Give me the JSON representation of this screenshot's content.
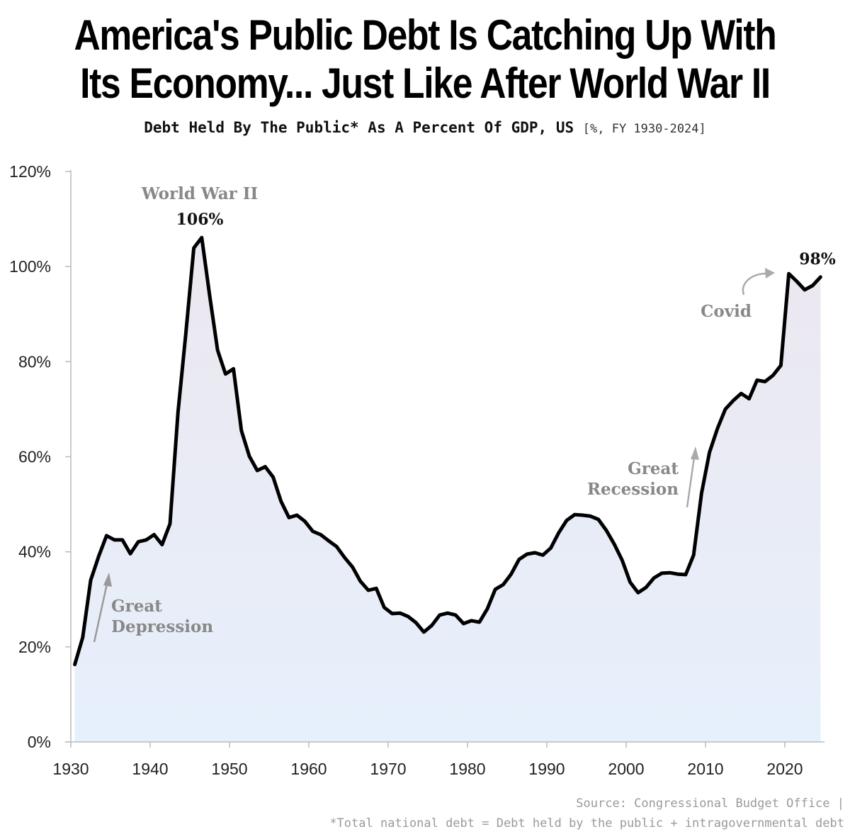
{
  "title": {
    "line1": "America's Public Debt Is Catching Up With",
    "line2": "Its Economy... Just Like After World War II"
  },
  "subtitle": {
    "main": "Debt Held By The Public* As A Percent Of GDP, US",
    "unit": "[%, FY 1930-2024]"
  },
  "chart_data": {
    "type": "area",
    "title": "Debt Held By The Public* As A Percent Of GDP, US",
    "xlabel": "",
    "ylabel": "",
    "xlim": [
      1930,
      2024
    ],
    "ylim": [
      0,
      120
    ],
    "x_ticks": [
      1930,
      1940,
      1950,
      1960,
      1970,
      1980,
      1990,
      2000,
      2010,
      2020
    ],
    "x_tick_labels": [
      "1930",
      "1940",
      "1950",
      "1960",
      "1970",
      "1980",
      "1990",
      "2000",
      "2010",
      "2020"
    ],
    "y_ticks": [
      0,
      20,
      40,
      60,
      80,
      100,
      120
    ],
    "y_tick_labels": [
      "0%",
      "20%",
      "40%",
      "60%",
      "80%",
      "100%",
      "120%"
    ],
    "colors": {
      "line": "#000000",
      "fill_top": "#ece7ef",
      "fill_bottom": "#e6f0fc",
      "axis": "#bbbbbb",
      "annotation": "#888888",
      "arrow": "#999999"
    },
    "series": [
      {
        "name": "Debt held by the public (% of GDP)",
        "x": [
          1930,
          1931,
          1932,
          1933,
          1934,
          1935,
          1936,
          1937,
          1938,
          1939,
          1940,
          1941,
          1942,
          1943,
          1944,
          1945,
          1946,
          1947,
          1948,
          1949,
          1950,
          1951,
          1952,
          1953,
          1954,
          1955,
          1956,
          1957,
          1958,
          1959,
          1960,
          1961,
          1962,
          1963,
          1964,
          1965,
          1966,
          1967,
          1968,
          1969,
          1970,
          1971,
          1972,
          1973,
          1974,
          1975,
          1976,
          1977,
          1978,
          1979,
          1980,
          1981,
          1982,
          1983,
          1984,
          1985,
          1986,
          1987,
          1988,
          1989,
          1990,
          1991,
          1992,
          1993,
          1994,
          1995,
          1996,
          1997,
          1998,
          1999,
          2000,
          2001,
          2002,
          2003,
          2004,
          2005,
          2006,
          2007,
          2008,
          2009,
          2010,
          2011,
          2012,
          2013,
          2014,
          2015,
          2016,
          2017,
          2018,
          2019,
          2020,
          2021,
          2022,
          2023,
          2024
        ],
        "values": [
          16.3,
          22.0,
          34.0,
          39.0,
          43.4,
          42.5,
          42.5,
          39.6,
          42.1,
          42.5,
          43.6,
          41.5,
          45.9,
          69.2,
          86.0,
          103.9,
          106.1,
          93.9,
          82.4,
          77.4,
          78.5,
          65.5,
          60.1,
          57.1,
          57.9,
          55.7,
          50.6,
          47.2,
          47.7,
          46.4,
          44.3,
          43.6,
          42.3,
          41.1,
          38.8,
          36.8,
          33.8,
          31.9,
          32.3,
          28.3,
          27.0,
          27.1,
          26.4,
          25.1,
          23.1,
          24.5,
          26.7,
          27.1,
          26.7,
          24.9,
          25.5,
          25.2,
          28.0,
          32.1,
          33.1,
          35.3,
          38.4,
          39.5,
          39.8,
          39.3,
          40.8,
          44.0,
          46.6,
          47.8,
          47.7,
          47.5,
          46.8,
          44.5,
          41.6,
          38.2,
          33.6,
          31.4,
          32.5,
          34.5,
          35.5,
          35.6,
          35.3,
          35.2,
          39.3,
          52.3,
          60.9,
          65.9,
          70.0,
          71.8,
          73.3,
          72.2,
          76.1,
          75.8,
          77.1,
          79.2,
          98.5,
          96.9,
          95.1,
          96.0,
          97.8
        ]
      }
    ],
    "annotations": {
      "ww2_label": "World War II",
      "ww2_peak": "106%",
      "covid_label": "Covid",
      "latest_peak": "98%",
      "great_depression_line1": "Great",
      "great_depression_line2": "Depression",
      "great_recession_line1": "Great",
      "great_recession_line2": "Recession"
    }
  },
  "footer": {
    "source": "Source: Congressional Budget Office |",
    "note": "*Total national debt = Debt held by the public + intragovernmental debt"
  }
}
